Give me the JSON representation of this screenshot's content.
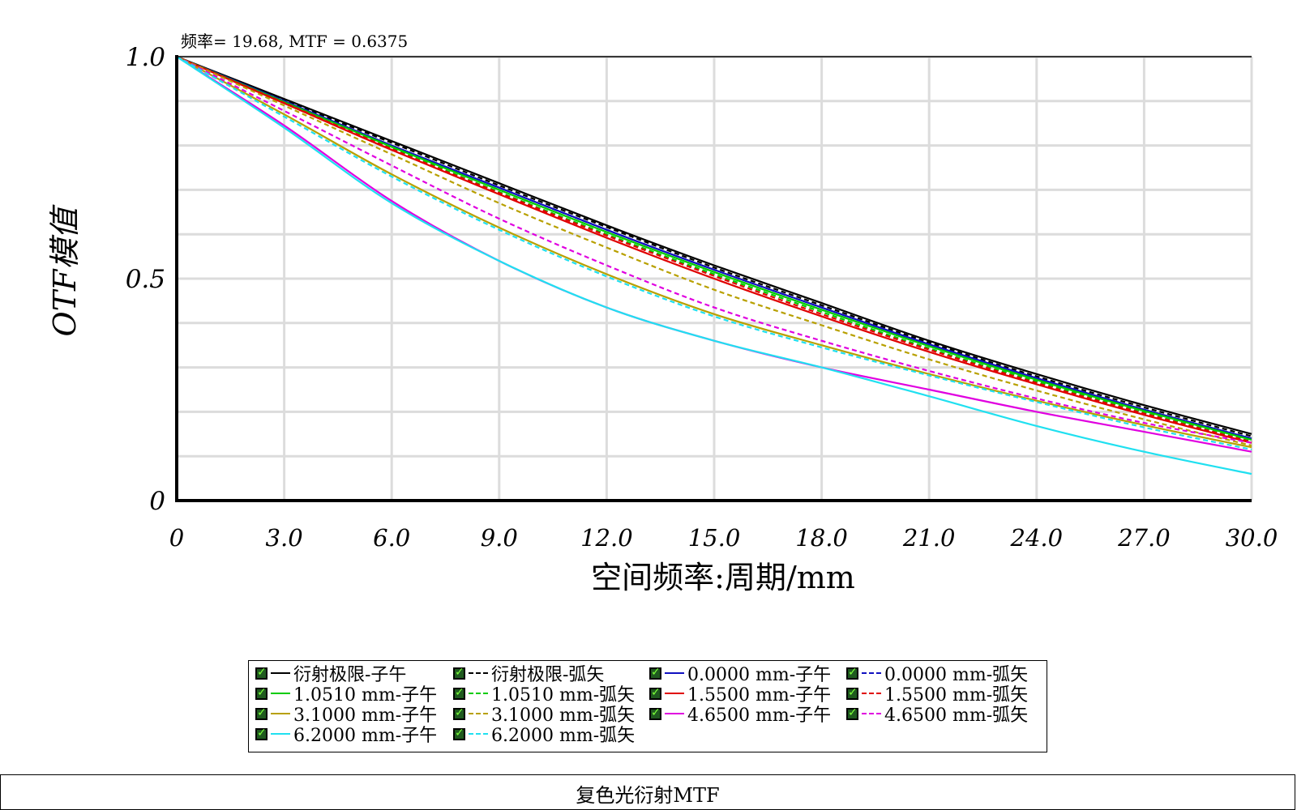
{
  "chart_data": {
    "type": "line",
    "cursor_readout": "频率= 19.68, MTF = 0.6375",
    "xlabel": "空间频率:周期/mm",
    "ylabel": "OTF模值",
    "xlim": [
      0,
      30
    ],
    "ylim": [
      0,
      1
    ],
    "x_tick_labels": [
      "0",
      "3.0",
      "6.0",
      "9.0",
      "12.0",
      "15.0",
      "18.0",
      "21.0",
      "24.0",
      "27.0",
      "30.0"
    ],
    "y_tick_labels": [
      "0",
      "0.5",
      "1.0"
    ],
    "grid": true,
    "x": [
      0,
      3,
      6,
      9,
      12,
      15,
      18,
      21,
      24,
      27,
      30
    ],
    "series": [
      {
        "name": "衍射极限-子午",
        "color": "#000000",
        "dashed": false,
        "values": [
          1.0,
          0.905,
          0.81,
          0.715,
          0.62,
          0.53,
          0.445,
          0.36,
          0.285,
          0.215,
          0.15
        ]
      },
      {
        "name": "衍射极限-弧矢",
        "color": "#000000",
        "dashed": true,
        "values": [
          1.0,
          0.902,
          0.806,
          0.71,
          0.616,
          0.525,
          0.44,
          0.356,
          0.28,
          0.21,
          0.145
        ]
      },
      {
        "name": "0.0000 mm-子午",
        "color": "#1010c0",
        "dashed": false,
        "values": [
          1.0,
          0.9,
          0.8,
          0.705,
          0.61,
          0.52,
          0.435,
          0.352,
          0.276,
          0.205,
          0.14
        ]
      },
      {
        "name": "0.0000 mm-弧矢",
        "color": "#1010c0",
        "dashed": true,
        "values": [
          1.0,
          0.9,
          0.8,
          0.705,
          0.61,
          0.52,
          0.435,
          0.352,
          0.276,
          0.205,
          0.14
        ]
      },
      {
        "name": "1.0510 mm-子午",
        "color": "#00cc00",
        "dashed": false,
        "values": [
          1.0,
          0.898,
          0.797,
          0.7,
          0.605,
          0.515,
          0.43,
          0.348,
          0.272,
          0.202,
          0.137
        ]
      },
      {
        "name": "1.0510 mm-弧矢",
        "color": "#00cc00",
        "dashed": true,
        "values": [
          1.0,
          0.897,
          0.794,
          0.695,
          0.6,
          0.51,
          0.425,
          0.343,
          0.268,
          0.198,
          0.133
        ]
      },
      {
        "name": "1.5500 mm-子午",
        "color": "#e00000",
        "dashed": false,
        "values": [
          1.0,
          0.895,
          0.79,
          0.69,
          0.592,
          0.5,
          0.415,
          0.335,
          0.262,
          0.193,
          0.13
        ]
      },
      {
        "name": "1.5500 mm-弧矢",
        "color": "#e00000",
        "dashed": true,
        "values": [
          1.0,
          0.896,
          0.792,
          0.693,
          0.597,
          0.506,
          0.42,
          0.34,
          0.265,
          0.196,
          0.132
        ]
      },
      {
        "name": "3.1000 mm-子午",
        "color": "#b8a000",
        "dashed": false,
        "values": [
          1.0,
          0.87,
          0.735,
          0.615,
          0.51,
          0.42,
          0.35,
          0.285,
          0.225,
          0.17,
          0.12
        ]
      },
      {
        "name": "3.1000 mm-弧矢",
        "color": "#b8a000",
        "dashed": true,
        "values": [
          1.0,
          0.89,
          0.78,
          0.67,
          0.57,
          0.475,
          0.395,
          0.318,
          0.248,
          0.183,
          0.124
        ]
      },
      {
        "name": "4.6500 mm-子午",
        "color": "#e000e0",
        "dashed": false,
        "values": [
          1.0,
          0.845,
          0.675,
          0.54,
          0.435,
          0.36,
          0.3,
          0.25,
          0.2,
          0.155,
          0.11
        ]
      },
      {
        "name": "4.6500 mm-弧矢",
        "color": "#e000e0",
        "dashed": true,
        "values": [
          1.0,
          0.878,
          0.755,
          0.635,
          0.53,
          0.435,
          0.36,
          0.292,
          0.23,
          0.175,
          0.13
        ]
      },
      {
        "name": "6.2000 mm-子午",
        "color": "#20e0f0",
        "dashed": false,
        "values": [
          1.0,
          0.84,
          0.67,
          0.54,
          0.435,
          0.36,
          0.3,
          0.235,
          0.168,
          0.11,
          0.06
        ]
      },
      {
        "name": "6.2000 mm-弧矢",
        "color": "#20e0f0",
        "dashed": true,
        "values": [
          1.0,
          0.865,
          0.73,
          0.61,
          0.505,
          0.415,
          0.345,
          0.282,
          0.222,
          0.165,
          0.115
        ]
      }
    ]
  },
  "footer": {
    "title": "复色光衍射MTF"
  }
}
